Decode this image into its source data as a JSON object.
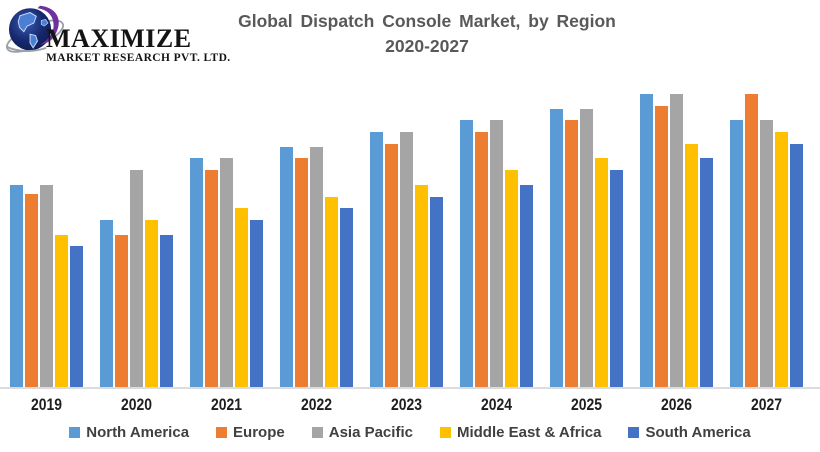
{
  "brand": {
    "name": "MAXIMIZE",
    "subtitle": "MARKET RESEARCH PVT. LTD."
  },
  "chart_data": {
    "type": "bar",
    "title": "Global Dispatch Console Market, by Region",
    "subtitle": "2020-2027",
    "categories": [
      "2019",
      "2020",
      "2021",
      "2022",
      "2023",
      "2024",
      "2025",
      "2026",
      "2027"
    ],
    "series": [
      {
        "name": "North America",
        "color": "#5B9BD5",
        "values": [
          69,
          57,
          78,
          82,
          87,
          91,
          95,
          100,
          91
        ]
      },
      {
        "name": "Europe",
        "color": "#ED7D31",
        "values": [
          66,
          52,
          74,
          78,
          83,
          87,
          91,
          96,
          100
        ]
      },
      {
        "name": "Asia Pacific",
        "color": "#A5A5A5",
        "values": [
          69,
          74,
          78,
          82,
          87,
          91,
          95,
          100,
          91
        ]
      },
      {
        "name": "Middle East & Africa",
        "color": "#FFC000",
        "values": [
          52,
          57,
          61,
          65,
          69,
          74,
          78,
          83,
          87
        ]
      },
      {
        "name": "South America",
        "color": "#4472C4",
        "values": [
          48,
          52,
          57,
          61,
          65,
          69,
          74,
          78,
          83
        ]
      }
    ],
    "ylim": [
      0,
      100
    ],
    "y_axis_visible": false,
    "gridlines": false,
    "legend_position": "bottom"
  },
  "colors": {
    "title_text": "#595959",
    "legend_text": "#404040",
    "axis_line": "#DCDCDC",
    "xlabel_text": "#1f1f1f",
    "logo_globe_dark": "#0d1b4c",
    "logo_globe_light": "#4a7fd4",
    "logo_swoosh": "#7030A0",
    "logo_ring": "#9aa0a6"
  }
}
